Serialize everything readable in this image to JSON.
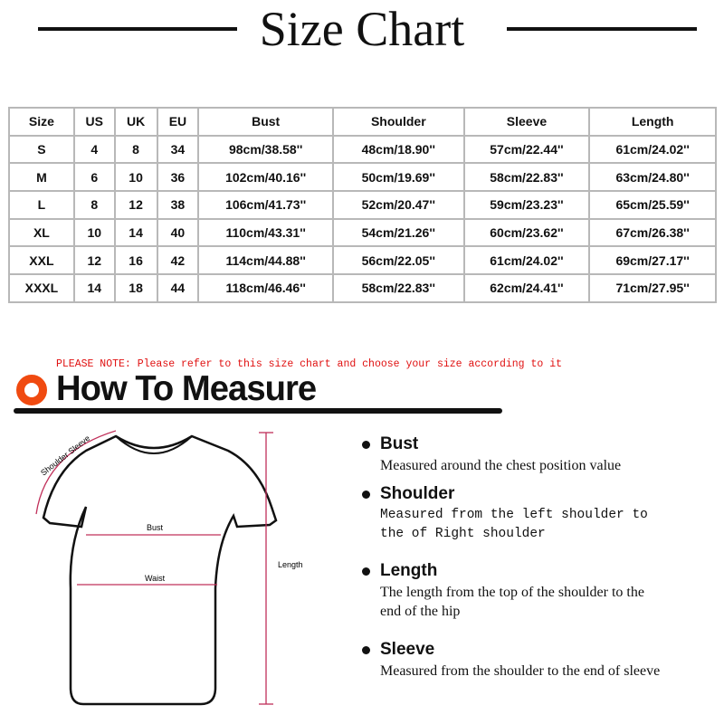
{
  "title": "Size Chart",
  "table": {
    "headers": [
      "Size",
      "US",
      "UK",
      "EU",
      "Bust",
      "Shoulder",
      "Sleeve",
      "Length"
    ],
    "rows": [
      [
        "S",
        "4",
        "8",
        "34",
        "98cm/38.58''",
        "48cm/18.90''",
        "57cm/22.44''",
        "61cm/24.02''"
      ],
      [
        "M",
        "6",
        "10",
        "36",
        "102cm/40.16''",
        "50cm/19.69''",
        "58cm/22.83''",
        "63cm/24.80''"
      ],
      [
        "L",
        "8",
        "12",
        "38",
        "106cm/41.73''",
        "52cm/20.47''",
        "59cm/23.23''",
        "65cm/25.59''"
      ],
      [
        "XL",
        "10",
        "14",
        "40",
        "110cm/43.31''",
        "54cm/21.26''",
        "60cm/23.62''",
        "67cm/26.38''"
      ],
      [
        "XXL",
        "12",
        "16",
        "42",
        "114cm/44.88''",
        "56cm/22.05''",
        "61cm/24.02''",
        "69cm/27.17''"
      ],
      [
        "XXXL",
        "14",
        "18",
        "44",
        "118cm/46.46''",
        "58cm/22.83''",
        "62cm/24.41''",
        "71cm/27.95''"
      ]
    ]
  },
  "note": "PLEASE NOTE: Please refer to this size chart and choose your size according to it",
  "how_to_measure": "How To Measure",
  "diagram": {
    "shoulder_sleeve": "Shoulder Sleeve",
    "bust": "Bust",
    "waist": "Waist",
    "length": "Length"
  },
  "measures": [
    {
      "name": "Bust",
      "desc": "Measured around the chest position value"
    },
    {
      "name": "Shoulder",
      "desc": "Measured from the left shoulder to the of Right shoulder"
    },
    {
      "name": "Length",
      "desc": "The length from the top of the shoulder to the end of the hip"
    },
    {
      "name": "Sleeve",
      "desc": "Measured from the shoulder to the end of sleeve"
    }
  ],
  "colors": {
    "accent": "#f04a10",
    "note": "#e01010",
    "measure_line": "#c0305a"
  }
}
